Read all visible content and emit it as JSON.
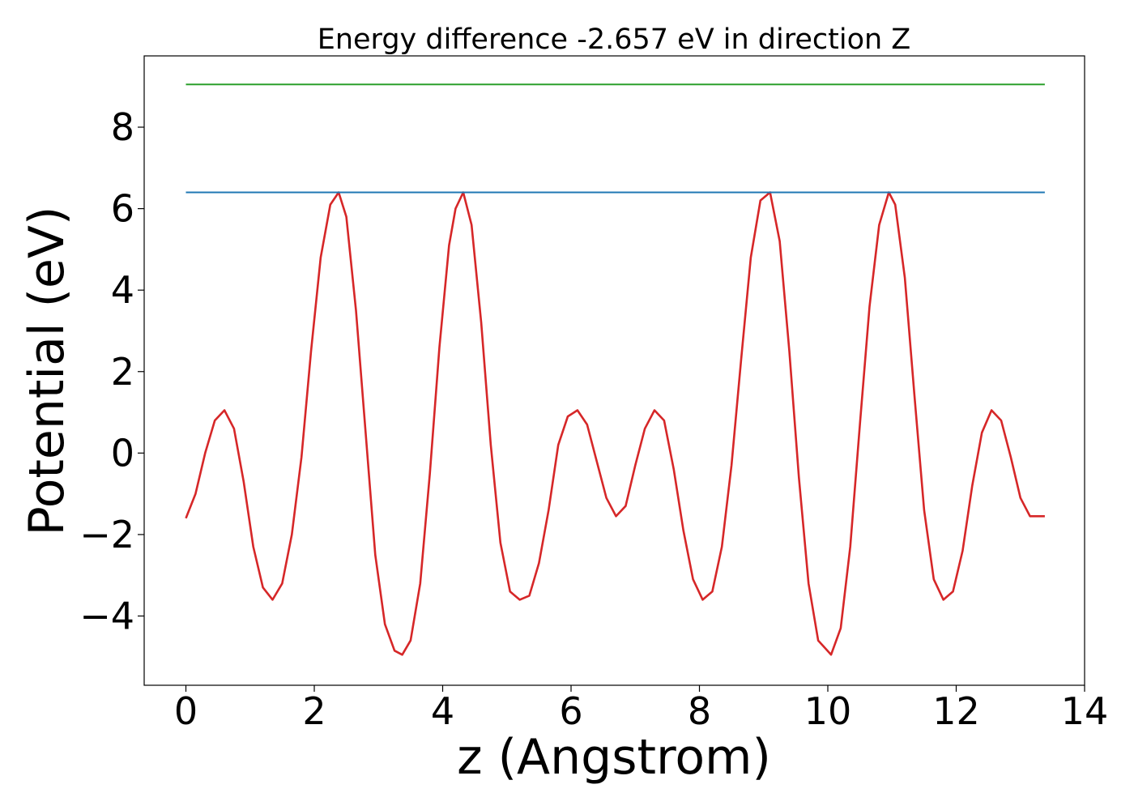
{
  "chart_data": {
    "type": "line",
    "title": "Energy difference -2.657 eV in direction Z",
    "xlabel": "z (Angstrom)",
    "ylabel": "Potential (eV)",
    "xlim": [
      -0.65,
      14.0
    ],
    "ylim": [
      -5.7,
      9.75
    ],
    "xticks": [
      0,
      2,
      4,
      6,
      8,
      10,
      12,
      14
    ],
    "yticks": [
      -4,
      -2,
      0,
      2,
      4,
      6,
      8
    ],
    "xtick_labels": [
      "0",
      "2",
      "4",
      "6",
      "8",
      "10",
      "12",
      "14"
    ],
    "ytick_labels": [
      "−4",
      "−2",
      "0",
      "2",
      "4",
      "6",
      "8"
    ],
    "grid": false,
    "legend": "none",
    "series": [
      {
        "color": "#d62728",
        "x": [
          0.0,
          0.15,
          0.3,
          0.45,
          0.6,
          0.75,
          0.9,
          1.05,
          1.2,
          1.35,
          1.5,
          1.65,
          1.8,
          1.95,
          2.1,
          2.25,
          2.38,
          2.5,
          2.65,
          2.8,
          2.95,
          3.1,
          3.25,
          3.37,
          3.5,
          3.65,
          3.8,
          3.95,
          4.1,
          4.2,
          4.32,
          4.45,
          4.6,
          4.75,
          4.9,
          5.05,
          5.2,
          5.35,
          5.5,
          5.65,
          5.8,
          5.95,
          6.1,
          6.25,
          6.4,
          6.55,
          6.7,
          6.85,
          7.0,
          7.15,
          7.3,
          7.45,
          7.6,
          7.75,
          7.9,
          8.05,
          8.2,
          8.35,
          8.5,
          8.65,
          8.8,
          8.95,
          9.1,
          9.25,
          9.4,
          9.55,
          9.7,
          9.85,
          10.05,
          10.2,
          10.35,
          10.5,
          10.65,
          10.8,
          10.95,
          11.05,
          11.2,
          11.35,
          11.5,
          11.65,
          11.8,
          11.95,
          12.1,
          12.25,
          12.4,
          12.55,
          12.7,
          12.85,
          13.0,
          13.15,
          13.38
        ],
        "values": [
          -1.6,
          -1.0,
          0.0,
          0.8,
          1.05,
          0.6,
          -0.7,
          -2.3,
          -3.3,
          -3.6,
          -3.2,
          -2.0,
          -0.1,
          2.5,
          4.8,
          6.1,
          6.4,
          5.8,
          3.5,
          0.5,
          -2.5,
          -4.2,
          -4.85,
          -4.95,
          -4.6,
          -3.2,
          -0.5,
          2.6,
          5.1,
          6.0,
          6.4,
          5.6,
          3.2,
          0.2,
          -2.2,
          -3.4,
          -3.6,
          -3.5,
          -2.7,
          -1.4,
          0.2,
          0.9,
          1.05,
          0.7,
          -0.2,
          -1.1,
          -1.55,
          -1.3,
          -0.3,
          0.6,
          1.05,
          0.8,
          -0.4,
          -1.9,
          -3.1,
          -3.6,
          -3.4,
          -2.3,
          -0.3,
          2.3,
          4.8,
          6.2,
          6.4,
          5.2,
          2.5,
          -0.6,
          -3.2,
          -4.6,
          -4.95,
          -4.3,
          -2.3,
          0.7,
          3.6,
          5.6,
          6.4,
          6.1,
          4.3,
          1.4,
          -1.4,
          -3.1,
          -3.6,
          -3.4,
          -2.4,
          -0.8,
          0.5,
          1.05,
          0.8,
          -0.1,
          -1.1,
          -1.55,
          -1.55
        ]
      },
      {
        "color": "#1f77b4",
        "x": [
          0.0,
          13.38
        ],
        "values": [
          6.4,
          6.4
        ]
      },
      {
        "color": "#2ca02c",
        "x": [
          0.0,
          13.38
        ],
        "values": [
          9.05,
          9.05
        ]
      }
    ]
  }
}
